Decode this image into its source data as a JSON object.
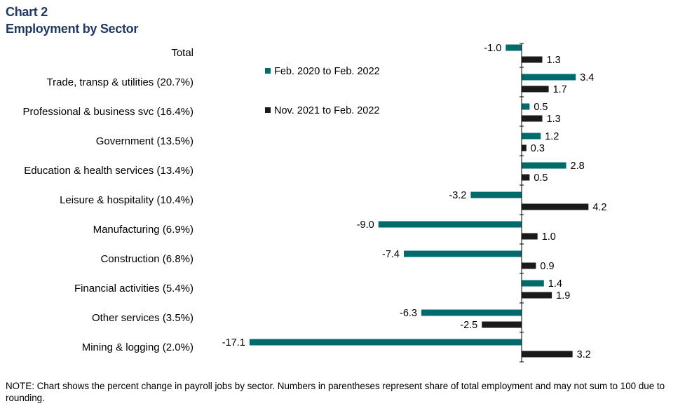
{
  "chart_title_line1": "Chart 2",
  "chart_title_line2": "Employment by Sector",
  "note": "NOTE: Chart shows the percent change in payroll jobs by sector. Numbers in parentheses represent share of total employment and may not sum to 100 due to rounding.",
  "colors": {
    "series1": "#006b6b",
    "series2": "#1a1a1a",
    "axis": "#000000"
  },
  "chart_data": {
    "type": "bar",
    "orientation": "horizontal",
    "title": "Employment by Sector",
    "categories": [
      "Total",
      "Trade, transp & utilities (20.7%)",
      "Professional & business svc (16.4%)",
      "Government (13.5%)",
      "Education & health services (13.4%)",
      "Leisure & hospitality (10.4%)",
      "Manufacturing (6.9%)",
      "Construction (6.8%)",
      "Financial activities (5.4%)",
      "Other services (3.5%)",
      "Mining & logging (2.0%)"
    ],
    "series": [
      {
        "name": "Feb. 2020 to Feb. 2022",
        "values": [
          -1.0,
          3.4,
          0.5,
          1.2,
          2.8,
          -3.2,
          -9.0,
          -7.4,
          1.4,
          -6.3,
          -17.1
        ]
      },
      {
        "name": "Nov. 2021 to Feb. 2022",
        "values": [
          1.3,
          1.7,
          1.3,
          0.3,
          0.5,
          4.2,
          1.0,
          0.9,
          1.9,
          -2.5,
          3.2
        ]
      }
    ],
    "xlabel": "",
    "ylabel": "",
    "xlim": [
      -17.1,
      4.2
    ],
    "grid": false,
    "legend": "top-left"
  }
}
